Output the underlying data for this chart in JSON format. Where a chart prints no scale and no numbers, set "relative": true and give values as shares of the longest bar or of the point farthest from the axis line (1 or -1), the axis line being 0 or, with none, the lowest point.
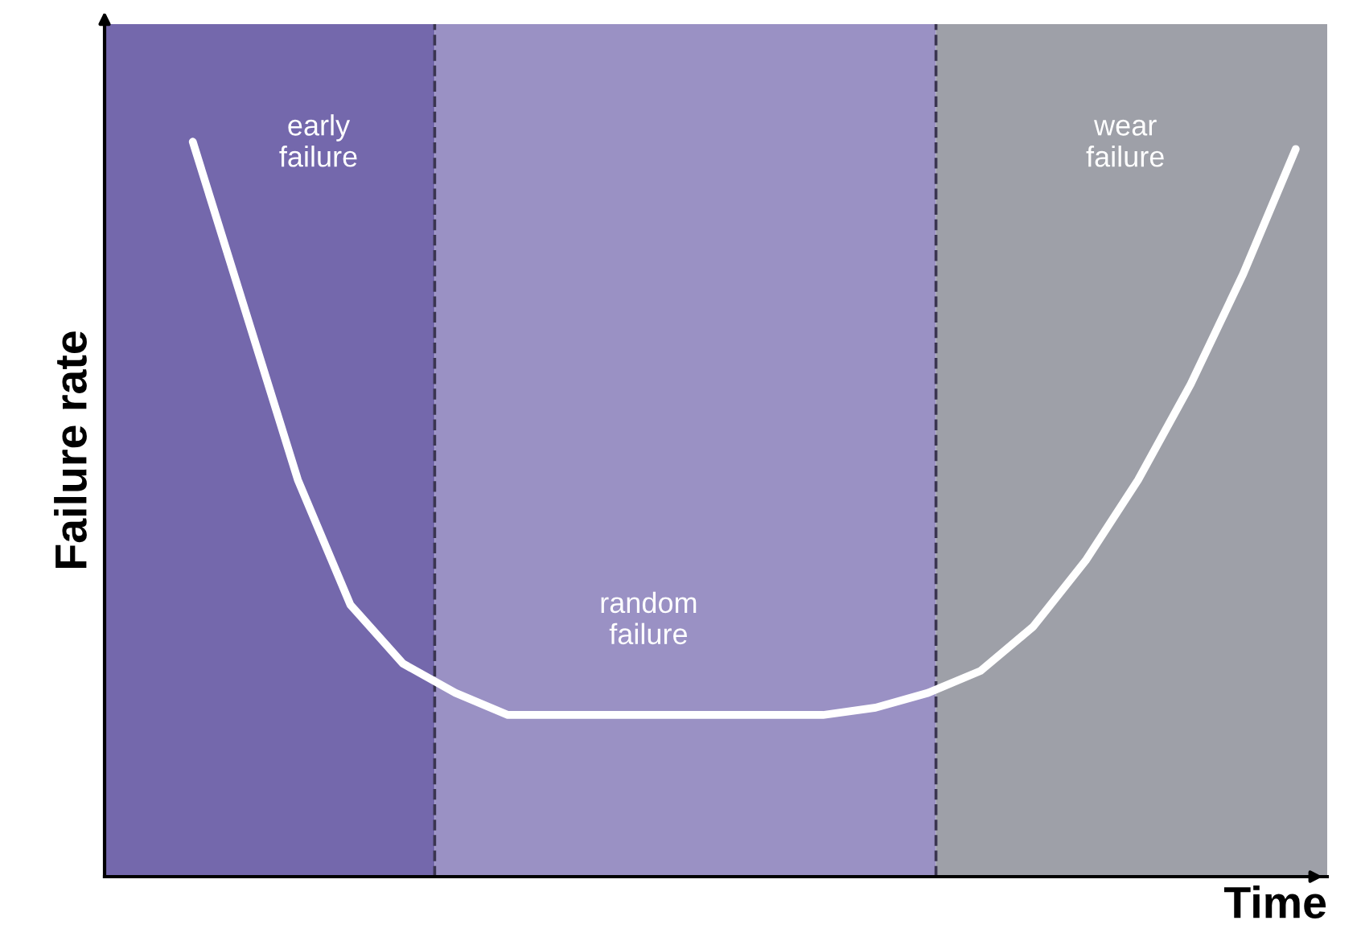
{
  "chart_data": {
    "type": "line",
    "xlabel": "Time",
    "ylabel": "Failure rate",
    "relative": true,
    "categories": [
      null,
      null,
      null,
      null,
      null,
      null,
      null,
      null,
      null,
      null,
      null,
      null,
      null,
      null,
      null,
      null,
      null,
      null,
      null,
      null,
      null,
      null
    ],
    "series": [
      {
        "color": "#ffffff",
        "values": [
          1.0,
          0.77,
          0.54,
          0.37,
          0.29,
          0.25,
          0.22,
          0.22,
          0.22,
          0.22,
          0.22,
          0.22,
          0.22,
          0.23,
          0.25,
          0.28,
          0.34,
          0.43,
          0.54,
          0.67,
          0.82,
          0.99
        ]
      }
    ],
    "annotations": [
      "early\nfailure",
      "random\nfailure",
      "wear\nfailure"
    ],
    "legend": false,
    "marker": "none",
    "line_style": "solid"
  }
}
